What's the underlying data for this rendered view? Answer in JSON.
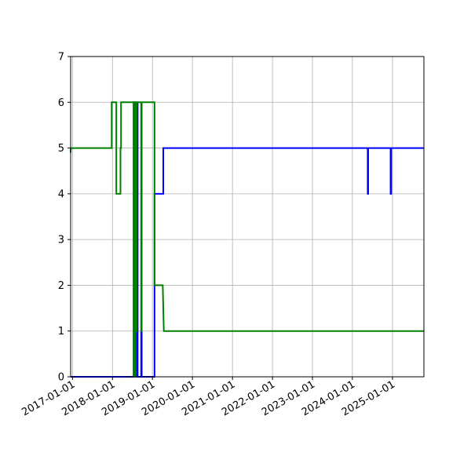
{
  "chart_data": {
    "type": "line",
    "title": "",
    "xlabel": "",
    "ylabel": "",
    "x_axis": {
      "type": "date",
      "range": [
        "2016-12-15",
        "2025-10-15"
      ],
      "tick_values": [
        "2017-01-01",
        "2018-01-01",
        "2019-01-01",
        "2020-01-01",
        "2021-01-01",
        "2022-01-01",
        "2023-01-01",
        "2024-01-01",
        "2025-01-01"
      ],
      "tick_labels": [
        "2017-01-01",
        "2018-01-01",
        "2019-01-01",
        "2020-01-01",
        "2021-01-01",
        "2022-01-01",
        "2023-01-01",
        "2024-01-01",
        "2025-01-01"
      ]
    },
    "y_axis": {
      "range": [
        0,
        7
      ],
      "tick_values": [
        0,
        1,
        2,
        3,
        4,
        5,
        6,
        7
      ],
      "tick_labels": [
        "0",
        "1",
        "2",
        "3",
        "4",
        "5",
        "6",
        "7"
      ]
    },
    "grid": true,
    "series": [
      {
        "color": "#0000ff",
        "points": [
          [
            "2016-12-15",
            0
          ],
          [
            "2018-07-15",
            0
          ],
          [
            "2018-07-15",
            6
          ],
          [
            "2018-07-22",
            6
          ],
          [
            "2018-07-22",
            0
          ],
          [
            "2018-07-29",
            0
          ],
          [
            "2018-07-29",
            6
          ],
          [
            "2018-08-05",
            6
          ],
          [
            "2018-08-05",
            0
          ],
          [
            "2018-08-12",
            0
          ],
          [
            "2018-08-12",
            6
          ],
          [
            "2018-08-19",
            6
          ],
          [
            "2018-08-19",
            0
          ],
          [
            "2018-09-20",
            0
          ],
          [
            "2018-09-20",
            1
          ],
          [
            "2018-09-25",
            1
          ],
          [
            "2018-09-25",
            0
          ],
          [
            "2019-01-20",
            0
          ],
          [
            "2019-01-20",
            4
          ],
          [
            "2019-04-10",
            4
          ],
          [
            "2019-04-10",
            5
          ],
          [
            "2024-05-20",
            5
          ],
          [
            "2024-05-20",
            4
          ],
          [
            "2024-05-24",
            4
          ],
          [
            "2024-05-24",
            5
          ],
          [
            "2024-12-15",
            5
          ],
          [
            "2024-12-15",
            4
          ],
          [
            "2024-12-20",
            4
          ],
          [
            "2024-12-20",
            5
          ],
          [
            "2025-10-15",
            5
          ]
        ]
      },
      {
        "color": "#008000",
        "points": [
          [
            "2016-12-15",
            4.9
          ],
          [
            "2016-12-16",
            5
          ],
          [
            "2017-12-25",
            5
          ],
          [
            "2017-12-25",
            6
          ],
          [
            "2018-02-05",
            6
          ],
          [
            "2018-02-05",
            4
          ],
          [
            "2018-03-15",
            4
          ],
          [
            "2018-03-15",
            5
          ],
          [
            "2018-03-20",
            5
          ],
          [
            "2018-03-20",
            6
          ],
          [
            "2018-07-12",
            6
          ],
          [
            "2018-07-12",
            0
          ],
          [
            "2018-07-16",
            0
          ],
          [
            "2018-07-16",
            6
          ],
          [
            "2018-07-20",
            6
          ],
          [
            "2018-07-20",
            0
          ],
          [
            "2018-07-24",
            0
          ],
          [
            "2018-07-24",
            6
          ],
          [
            "2018-07-28",
            6
          ],
          [
            "2018-07-28",
            0
          ],
          [
            "2018-08-01",
            0
          ],
          [
            "2018-08-01",
            6
          ],
          [
            "2018-08-05",
            6
          ],
          [
            "2018-08-05",
            1
          ],
          [
            "2018-08-09",
            1
          ],
          [
            "2018-08-09",
            6
          ],
          [
            "2018-09-20",
            6
          ],
          [
            "2018-09-20",
            1
          ],
          [
            "2018-09-25",
            1
          ],
          [
            "2018-09-25",
            6
          ],
          [
            "2019-01-20",
            6
          ],
          [
            "2019-01-20",
            2
          ],
          [
            "2019-04-05",
            2
          ],
          [
            "2019-04-15",
            1
          ],
          [
            "2025-10-15",
            1
          ]
        ]
      }
    ]
  }
}
